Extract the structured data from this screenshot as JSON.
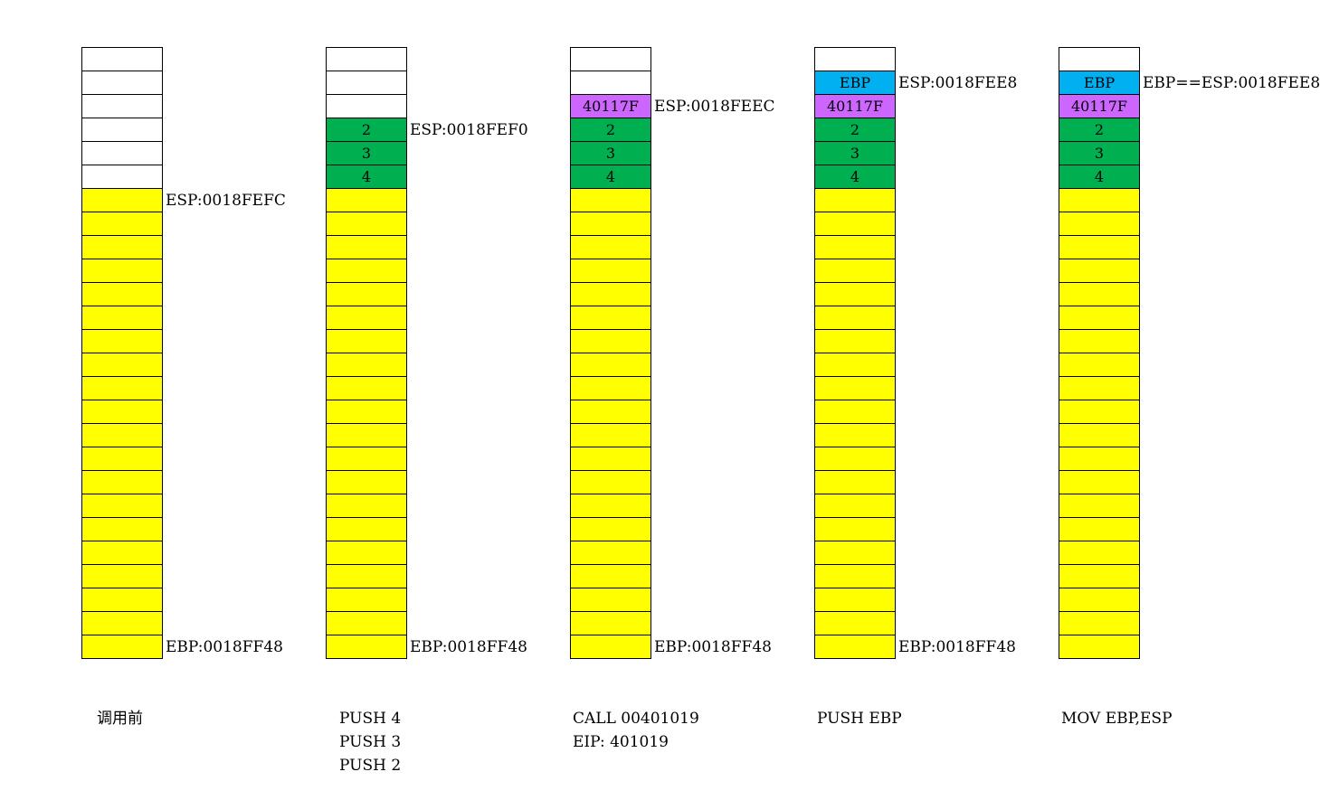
{
  "colors": {
    "empty": "#ffffff",
    "caller": "#ffff00",
    "arg": "#00b050",
    "ret": "#cc66ff",
    "ebp": "#00b0f0"
  },
  "stacks": [
    {
      "cells": [
        {
          "type": "empty",
          "label": ""
        },
        {
          "type": "empty",
          "label": ""
        },
        {
          "type": "empty",
          "label": ""
        },
        {
          "type": "empty",
          "label": ""
        },
        {
          "type": "empty",
          "label": ""
        },
        {
          "type": "empty",
          "label": ""
        }
      ],
      "markers": [
        {
          "row": 6,
          "text": "ESP:0018FEFC"
        },
        {
          "row": 25,
          "text": "EBP:0018FF48"
        }
      ],
      "caption": [
        "调用前"
      ]
    },
    {
      "cells": [
        {
          "type": "empty",
          "label": ""
        },
        {
          "type": "empty",
          "label": ""
        },
        {
          "type": "empty",
          "label": ""
        },
        {
          "type": "arg",
          "label": "2"
        },
        {
          "type": "arg",
          "label": "3"
        },
        {
          "type": "arg",
          "label": "4"
        }
      ],
      "markers": [
        {
          "row": 3,
          "text": "ESP:0018FEF0"
        },
        {
          "row": 25,
          "text": "EBP:0018FF48"
        }
      ],
      "caption": [
        "PUSH 4",
        "PUSH 3",
        "PUSH 2"
      ]
    },
    {
      "cells": [
        {
          "type": "empty",
          "label": ""
        },
        {
          "type": "empty",
          "label": ""
        },
        {
          "type": "ret",
          "label": "40117F"
        },
        {
          "type": "arg",
          "label": "2"
        },
        {
          "type": "arg",
          "label": "3"
        },
        {
          "type": "arg",
          "label": "4"
        }
      ],
      "markers": [
        {
          "row": 2,
          "text": "ESP:0018FEEC"
        },
        {
          "row": 25,
          "text": "EBP:0018FF48"
        }
      ],
      "caption": [
        "CALL 00401019",
        "EIP: 401019"
      ]
    },
    {
      "cells": [
        {
          "type": "empty",
          "label": ""
        },
        {
          "type": "ebp",
          "label": "EBP"
        },
        {
          "type": "ret",
          "label": "40117F"
        },
        {
          "type": "arg",
          "label": "2"
        },
        {
          "type": "arg",
          "label": "3"
        },
        {
          "type": "arg",
          "label": "4"
        }
      ],
      "markers": [
        {
          "row": 1,
          "text": "ESP:0018FEE8"
        },
        {
          "row": 25,
          "text": "EBP:0018FF48"
        }
      ],
      "caption": [
        "PUSH EBP"
      ]
    },
    {
      "cells": [
        {
          "type": "empty",
          "label": ""
        },
        {
          "type": "ebp",
          "label": "EBP"
        },
        {
          "type": "ret",
          "label": "40117F"
        },
        {
          "type": "arg",
          "label": "2"
        },
        {
          "type": "arg",
          "label": "3"
        },
        {
          "type": "arg",
          "label": "4"
        }
      ],
      "markers": [
        {
          "row": 1,
          "text": "EBP==ESP:0018FEE8"
        }
      ],
      "caption": [
        "MOV EBP,ESP"
      ]
    }
  ]
}
